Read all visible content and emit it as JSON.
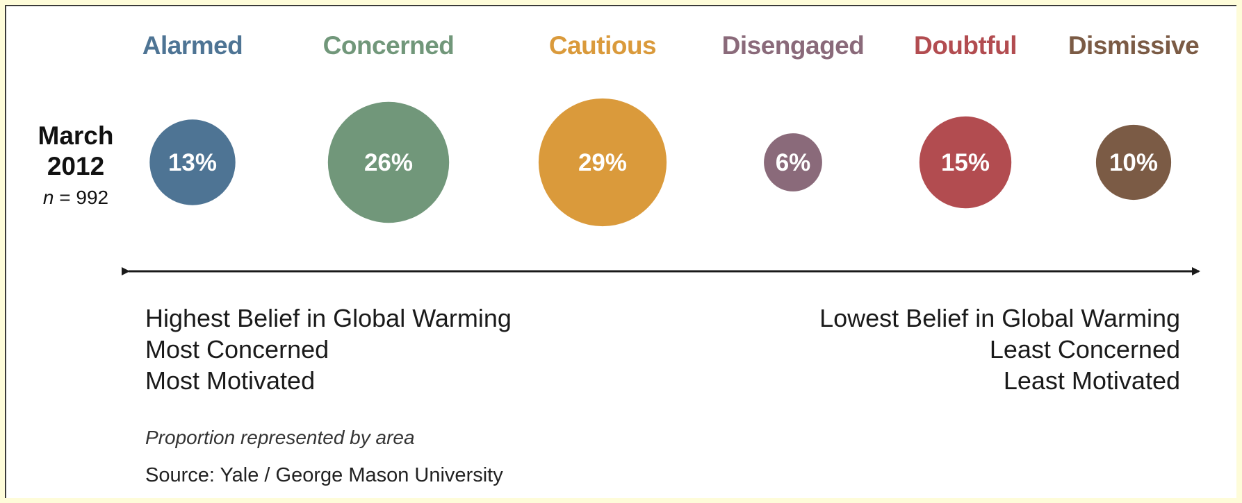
{
  "chart_data": {
    "type": "bubble",
    "period": {
      "month": "March",
      "year": "2012",
      "n_label": "n",
      "n_value": "992"
    },
    "categories": [
      {
        "name": "Alarmed",
        "value": 13,
        "label": "13%",
        "color": "#4e7494"
      },
      {
        "name": "Concerned",
        "value": 26,
        "label": "26%",
        "color": "#71977a"
      },
      {
        "name": "Cautious",
        "value": 29,
        "label": "29%",
        "color": "#da9a3b"
      },
      {
        "name": "Disengaged",
        "value": 6,
        "label": "6%",
        "color": "#8a6a7a"
      },
      {
        "name": "Doubtful",
        "value": 15,
        "label": "15%",
        "color": "#b24c50"
      },
      {
        "name": "Dismissive",
        "value": 10,
        "label": "10%",
        "color": "#7b5b45"
      }
    ],
    "scale_left": [
      "Highest Belief in Global Warming",
      "Most Concerned",
      "Most Motivated"
    ],
    "scale_right": [
      "Lowest Belief in Global Warming",
      "Least Concerned",
      "Least Motivated"
    ],
    "caption": "Proportion represented by area",
    "source": "Source: Yale / George Mason University"
  }
}
